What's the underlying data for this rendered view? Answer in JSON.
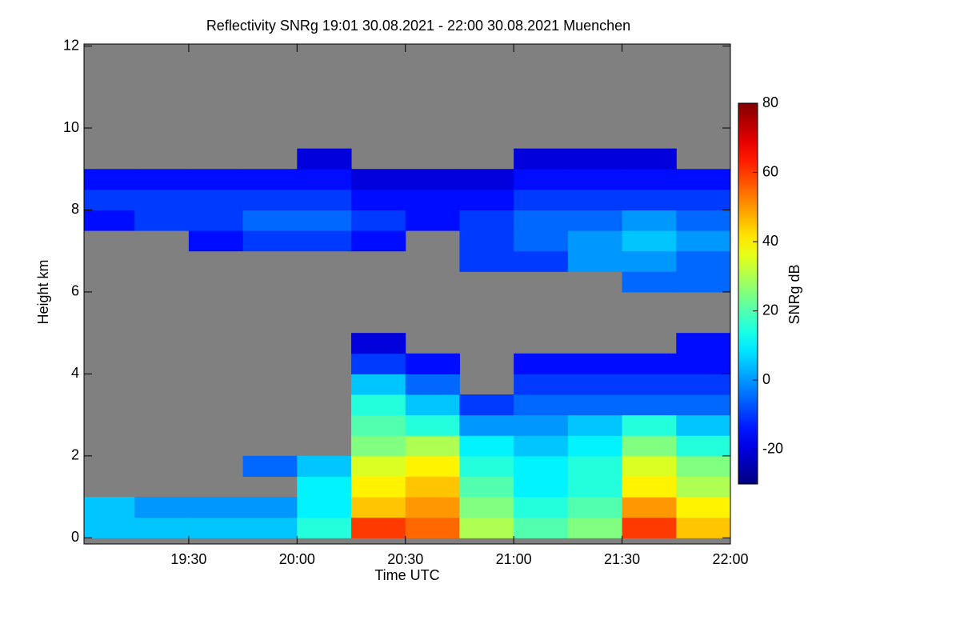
{
  "chart_data": {
    "type": "heatmap",
    "title": "Reflectivity SNRg   19:01 30.08.2021 - 22:00 30.08.2021 Muenchen",
    "xlabel": "Time UTC",
    "ylabel": "Height km",
    "colorbar_label": "SNRg dB",
    "x_bins": [
      0,
      15,
      30,
      45,
      60,
      75,
      90,
      105,
      120,
      135,
      150,
      165,
      180
    ],
    "y_bins": [
      0,
      0.5,
      1,
      1.5,
      2,
      2.5,
      3,
      3.5,
      4,
      4.5,
      5,
      5.5,
      6,
      6.5,
      7,
      7.5,
      8,
      8.5,
      9,
      9.5,
      10
    ],
    "z": [
      [
        5,
        5,
        5,
        5,
        15,
        60,
        55,
        30,
        20,
        25,
        60,
        45
      ],
      [
        5,
        0,
        0,
        0,
        10,
        45,
        50,
        25,
        15,
        20,
        50,
        40
      ],
      [
        null,
        null,
        null,
        null,
        10,
        40,
        45,
        20,
        10,
        15,
        40,
        30
      ],
      [
        null,
        null,
        null,
        -5,
        5,
        35,
        40,
        15,
        10,
        15,
        35,
        25
      ],
      [
        null,
        null,
        null,
        null,
        null,
        25,
        30,
        10,
        5,
        10,
        25,
        15
      ],
      [
        null,
        null,
        null,
        null,
        null,
        20,
        15,
        0,
        0,
        5,
        15,
        5
      ],
      [
        null,
        null,
        null,
        null,
        null,
        15,
        5,
        -10,
        -5,
        -5,
        -5,
        -5
      ],
      [
        null,
        null,
        null,
        null,
        null,
        5,
        -5,
        null,
        -10,
        -10,
        -10,
        -10
      ],
      [
        null,
        null,
        null,
        null,
        null,
        -10,
        -15,
        null,
        -15,
        -15,
        -15,
        -15
      ],
      [
        null,
        null,
        null,
        null,
        null,
        -20,
        null,
        null,
        null,
        null,
        null,
        -15
      ],
      [
        null,
        null,
        null,
        null,
        null,
        null,
        null,
        null,
        null,
        null,
        null,
        null
      ],
      [
        null,
        null,
        null,
        null,
        null,
        null,
        null,
        null,
        null,
        null,
        null,
        null
      ],
      [
        null,
        null,
        null,
        null,
        null,
        null,
        null,
        null,
        null,
        null,
        -5,
        -5
      ],
      [
        null,
        null,
        null,
        null,
        null,
        null,
        null,
        -10,
        -10,
        0,
        0,
        -5
      ],
      [
        null,
        null,
        -15,
        -10,
        -10,
        -15,
        null,
        -10,
        -5,
        0,
        5,
        0
      ],
      [
        -15,
        -10,
        -10,
        -5,
        -5,
        -10,
        -15,
        -10,
        -5,
        -5,
        0,
        -5
      ],
      [
        -10,
        -10,
        -10,
        -10,
        -10,
        -15,
        -15,
        -15,
        -10,
        -10,
        -10,
        -10
      ],
      [
        -15,
        -15,
        -15,
        -15,
        -15,
        -20,
        -20,
        -20,
        -15,
        -15,
        -15,
        -15
      ],
      [
        null,
        null,
        null,
        null,
        -20,
        null,
        null,
        null,
        -20,
        -20,
        -20,
        null
      ],
      [
        null,
        null,
        null,
        null,
        null,
        null,
        null,
        null,
        null,
        null,
        null,
        null
      ]
    ],
    "xlim": [
      1,
      180
    ],
    "ylim": [
      -0.15,
      12.05
    ],
    "xticks": [
      {
        "value": 30,
        "label": "19:30"
      },
      {
        "value": 60,
        "label": "20:00"
      },
      {
        "value": 90,
        "label": "20:30"
      },
      {
        "value": 120,
        "label": "21:00"
      },
      {
        "value": 150,
        "label": "21:30"
      },
      {
        "value": 180,
        "label": "22:00"
      }
    ],
    "yticks": [
      0,
      2,
      4,
      6,
      8,
      10,
      12
    ],
    "clim": [
      -30,
      80
    ],
    "cticks": [
      -20,
      0,
      20,
      40,
      60,
      80
    ],
    "colormap": "jet",
    "missing_color": "#808080"
  }
}
